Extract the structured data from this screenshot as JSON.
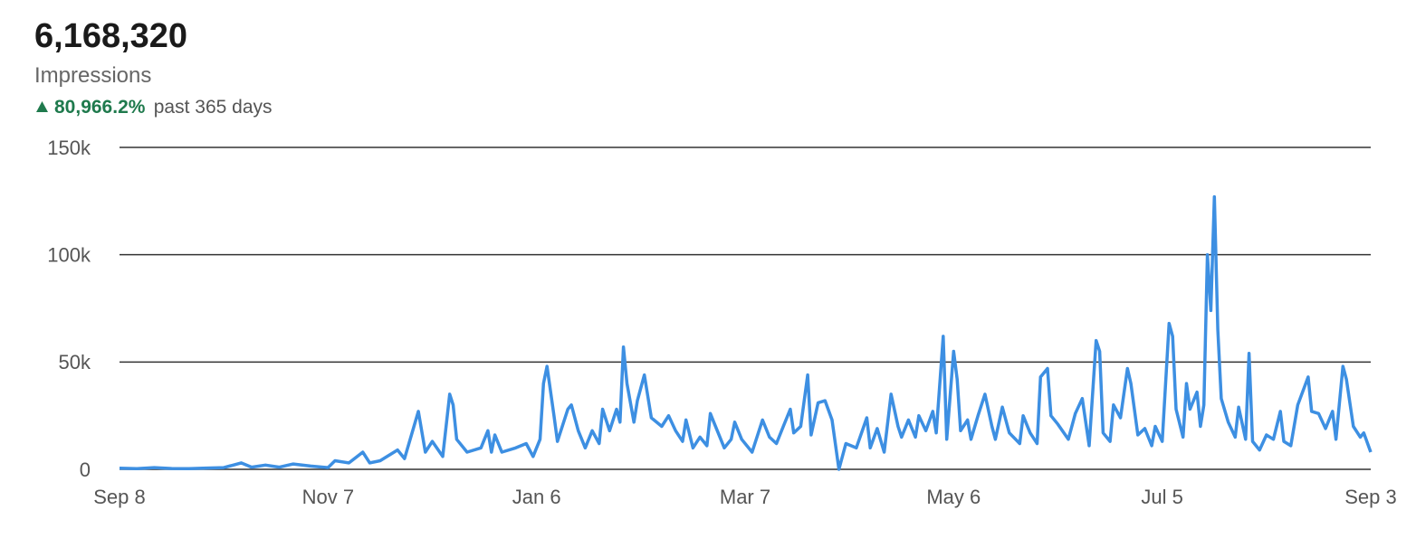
{
  "header": {
    "total": "6,168,320",
    "metric": "Impressions",
    "change": "80,966.2%",
    "period": "past 365 days"
  },
  "chart_data": {
    "type": "line",
    "color": "#3d8fe2",
    "grid": true,
    "xlim": [
      0,
      360
    ],
    "xticks": [
      {
        "value": 0,
        "label": "Sep 8"
      },
      {
        "value": 60,
        "label": "Nov 7"
      },
      {
        "value": 120,
        "label": "Jan 6"
      },
      {
        "value": 180,
        "label": "Mar 7"
      },
      {
        "value": 240,
        "label": "May 6"
      },
      {
        "value": 300,
        "label": "Jul 5"
      },
      {
        "value": 360,
        "label": "Sep 3"
      }
    ],
    "ylim": [
      0,
      150000
    ],
    "yticks": [
      0,
      {
        "value": 50000,
        "label": "50k"
      },
      {
        "value": 100000,
        "label": "100k"
      },
      {
        "value": 150000,
        "label": "150k"
      }
    ],
    "x": [
      0,
      5,
      10,
      15,
      20,
      25,
      30,
      35,
      38,
      42,
      46,
      50,
      55,
      60,
      62,
      66,
      70,
      72,
      75,
      80,
      82,
      86,
      88,
      90,
      93,
      95,
      96,
      97,
      100,
      104,
      106,
      107,
      108,
      110,
      114,
      117,
      119,
      121,
      122,
      123,
      125,
      126,
      129,
      130,
      132,
      134,
      136,
      138,
      139,
      141,
      143,
      144,
      145,
      146,
      148,
      149,
      151,
      153,
      156,
      158,
      160,
      162,
      163,
      165,
      167,
      169,
      170,
      171,
      174,
      176,
      177,
      179,
      182,
      185,
      187,
      189,
      191,
      193,
      194,
      196,
      198,
      199,
      201,
      203,
      205,
      207,
      209,
      212,
      215,
      216,
      218,
      220,
      222,
      224,
      225,
      227,
      229,
      230,
      232,
      234,
      235,
      237,
      238,
      240,
      241,
      242,
      244,
      245,
      247,
      249,
      251,
      252,
      254,
      256,
      259,
      260,
      262,
      264,
      265,
      267,
      268,
      270,
      273,
      275,
      277,
      279,
      281,
      282,
      283,
      285,
      286,
      288,
      290,
      291,
      293,
      295,
      297,
      298,
      300,
      302,
      303,
      304,
      306,
      307,
      308,
      310,
      311,
      312,
      313,
      314,
      315,
      316,
      317,
      319,
      321,
      322,
      324,
      325,
      326,
      328,
      330,
      332,
      334,
      335,
      337,
      339,
      342,
      343,
      345,
      347,
      349,
      350,
      352,
      353,
      355,
      357,
      358,
      360
    ],
    "values": [
      500,
      300,
      800,
      400,
      300,
      600,
      800,
      3000,
      1000,
      2000,
      1000,
      2500,
      1500,
      800,
      4000,
      3000,
      8000,
      3000,
      4000,
      9000,
      5000,
      27000,
      8000,
      13000,
      6000,
      35000,
      30000,
      14000,
      8000,
      10000,
      18000,
      8000,
      16000,
      8000,
      10000,
      12000,
      6000,
      14000,
      40000,
      48000,
      25000,
      13000,
      28000,
      30000,
      18000,
      10000,
      18000,
      12000,
      28000,
      18000,
      28000,
      22000,
      57000,
      40000,
      22000,
      32000,
      44000,
      24000,
      20000,
      25000,
      18000,
      13000,
      23000,
      10000,
      15000,
      11000,
      26000,
      22000,
      10000,
      14000,
      22000,
      14000,
      8000,
      23000,
      15000,
      12000,
      20000,
      28000,
      17000,
      20000,
      44000,
      16000,
      31000,
      32000,
      23000,
      0,
      12000,
      10000,
      24000,
      10000,
      19000,
      8000,
      35000,
      20000,
      15000,
      23000,
      15000,
      25000,
      18000,
      27000,
      17000,
      62000,
      14000,
      55000,
      42000,
      18000,
      23000,
      14000,
      25000,
      35000,
      20000,
      14000,
      29000,
      17000,
      12000,
      25000,
      17000,
      12000,
      43000,
      47000,
      25000,
      21000,
      14000,
      26000,
      33000,
      11000,
      60000,
      55000,
      17000,
      13000,
      30000,
      24000,
      47000,
      40000,
      16000,
      19000,
      11000,
      20000,
      13000,
      68000,
      62000,
      28000,
      15000,
      40000,
      28000,
      36000,
      20000,
      30000,
      100000,
      74000,
      127000,
      65000,
      33000,
      22000,
      15000,
      29000,
      14000,
      54000,
      13000,
      9000,
      16000,
      14000,
      27000,
      13000,
      11000,
      30000,
      43000,
      27000,
      26000,
      19000,
      27000,
      14000,
      48000,
      42000,
      20000,
      15000,
      17000,
      8000
    ]
  }
}
